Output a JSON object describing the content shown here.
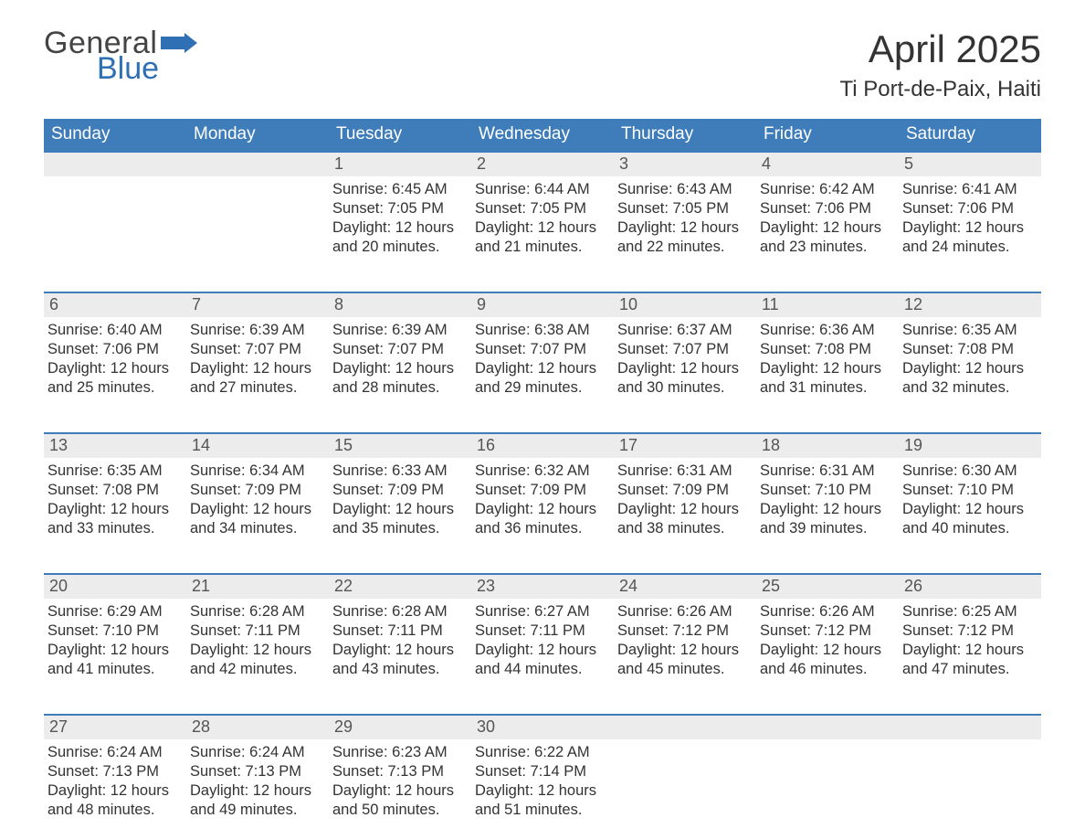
{
  "logo": {
    "word1": "General",
    "word2": "Blue",
    "flag_color": "#2f6fb3"
  },
  "title": "April 2025",
  "subtitle": "Ti Port-de-Paix, Haiti",
  "colors": {
    "header_bg": "#3f7cba",
    "header_text": "#ffffff",
    "daynum_bg": "#ececec",
    "border": "#3f7cba",
    "body_text": "#333333",
    "page_bg": "#ffffff"
  },
  "weekdays": [
    "Sunday",
    "Monday",
    "Tuesday",
    "Wednesday",
    "Thursday",
    "Friday",
    "Saturday"
  ],
  "labels": {
    "sunrise": "Sunrise:",
    "sunset": "Sunset:",
    "daylight": "Daylight:"
  },
  "weeks": [
    [
      {
        "n": "",
        "sunrise": "",
        "sunset": "",
        "daylight": ""
      },
      {
        "n": "",
        "sunrise": "",
        "sunset": "",
        "daylight": ""
      },
      {
        "n": "1",
        "sunrise": "6:45 AM",
        "sunset": "7:05 PM",
        "daylight": "12 hours and 20 minutes."
      },
      {
        "n": "2",
        "sunrise": "6:44 AM",
        "sunset": "7:05 PM",
        "daylight": "12 hours and 21 minutes."
      },
      {
        "n": "3",
        "sunrise": "6:43 AM",
        "sunset": "7:05 PM",
        "daylight": "12 hours and 22 minutes."
      },
      {
        "n": "4",
        "sunrise": "6:42 AM",
        "sunset": "7:06 PM",
        "daylight": "12 hours and 23 minutes."
      },
      {
        "n": "5",
        "sunrise": "6:41 AM",
        "sunset": "7:06 PM",
        "daylight": "12 hours and 24 minutes."
      }
    ],
    [
      {
        "n": "6",
        "sunrise": "6:40 AM",
        "sunset": "7:06 PM",
        "daylight": "12 hours and 25 minutes."
      },
      {
        "n": "7",
        "sunrise": "6:39 AM",
        "sunset": "7:07 PM",
        "daylight": "12 hours and 27 minutes."
      },
      {
        "n": "8",
        "sunrise": "6:39 AM",
        "sunset": "7:07 PM",
        "daylight": "12 hours and 28 minutes."
      },
      {
        "n": "9",
        "sunrise": "6:38 AM",
        "sunset": "7:07 PM",
        "daylight": "12 hours and 29 minutes."
      },
      {
        "n": "10",
        "sunrise": "6:37 AM",
        "sunset": "7:07 PM",
        "daylight": "12 hours and 30 minutes."
      },
      {
        "n": "11",
        "sunrise": "6:36 AM",
        "sunset": "7:08 PM",
        "daylight": "12 hours and 31 minutes."
      },
      {
        "n": "12",
        "sunrise": "6:35 AM",
        "sunset": "7:08 PM",
        "daylight": "12 hours and 32 minutes."
      }
    ],
    [
      {
        "n": "13",
        "sunrise": "6:35 AM",
        "sunset": "7:08 PM",
        "daylight": "12 hours and 33 minutes."
      },
      {
        "n": "14",
        "sunrise": "6:34 AM",
        "sunset": "7:09 PM",
        "daylight": "12 hours and 34 minutes."
      },
      {
        "n": "15",
        "sunrise": "6:33 AM",
        "sunset": "7:09 PM",
        "daylight": "12 hours and 35 minutes."
      },
      {
        "n": "16",
        "sunrise": "6:32 AM",
        "sunset": "7:09 PM",
        "daylight": "12 hours and 36 minutes."
      },
      {
        "n": "17",
        "sunrise": "6:31 AM",
        "sunset": "7:09 PM",
        "daylight": "12 hours and 38 minutes."
      },
      {
        "n": "18",
        "sunrise": "6:31 AM",
        "sunset": "7:10 PM",
        "daylight": "12 hours and 39 minutes."
      },
      {
        "n": "19",
        "sunrise": "6:30 AM",
        "sunset": "7:10 PM",
        "daylight": "12 hours and 40 minutes."
      }
    ],
    [
      {
        "n": "20",
        "sunrise": "6:29 AM",
        "sunset": "7:10 PM",
        "daylight": "12 hours and 41 minutes."
      },
      {
        "n": "21",
        "sunrise": "6:28 AM",
        "sunset": "7:11 PM",
        "daylight": "12 hours and 42 minutes."
      },
      {
        "n": "22",
        "sunrise": "6:28 AM",
        "sunset": "7:11 PM",
        "daylight": "12 hours and 43 minutes."
      },
      {
        "n": "23",
        "sunrise": "6:27 AM",
        "sunset": "7:11 PM",
        "daylight": "12 hours and 44 minutes."
      },
      {
        "n": "24",
        "sunrise": "6:26 AM",
        "sunset": "7:12 PM",
        "daylight": "12 hours and 45 minutes."
      },
      {
        "n": "25",
        "sunrise": "6:26 AM",
        "sunset": "7:12 PM",
        "daylight": "12 hours and 46 minutes."
      },
      {
        "n": "26",
        "sunrise": "6:25 AM",
        "sunset": "7:12 PM",
        "daylight": "12 hours and 47 minutes."
      }
    ],
    [
      {
        "n": "27",
        "sunrise": "6:24 AM",
        "sunset": "7:13 PM",
        "daylight": "12 hours and 48 minutes."
      },
      {
        "n": "28",
        "sunrise": "6:24 AM",
        "sunset": "7:13 PM",
        "daylight": "12 hours and 49 minutes."
      },
      {
        "n": "29",
        "sunrise": "6:23 AM",
        "sunset": "7:13 PM",
        "daylight": "12 hours and 50 minutes."
      },
      {
        "n": "30",
        "sunrise": "6:22 AM",
        "sunset": "7:14 PM",
        "daylight": "12 hours and 51 minutes."
      },
      {
        "n": "",
        "sunrise": "",
        "sunset": "",
        "daylight": ""
      },
      {
        "n": "",
        "sunrise": "",
        "sunset": "",
        "daylight": ""
      },
      {
        "n": "",
        "sunrise": "",
        "sunset": "",
        "daylight": ""
      }
    ]
  ]
}
